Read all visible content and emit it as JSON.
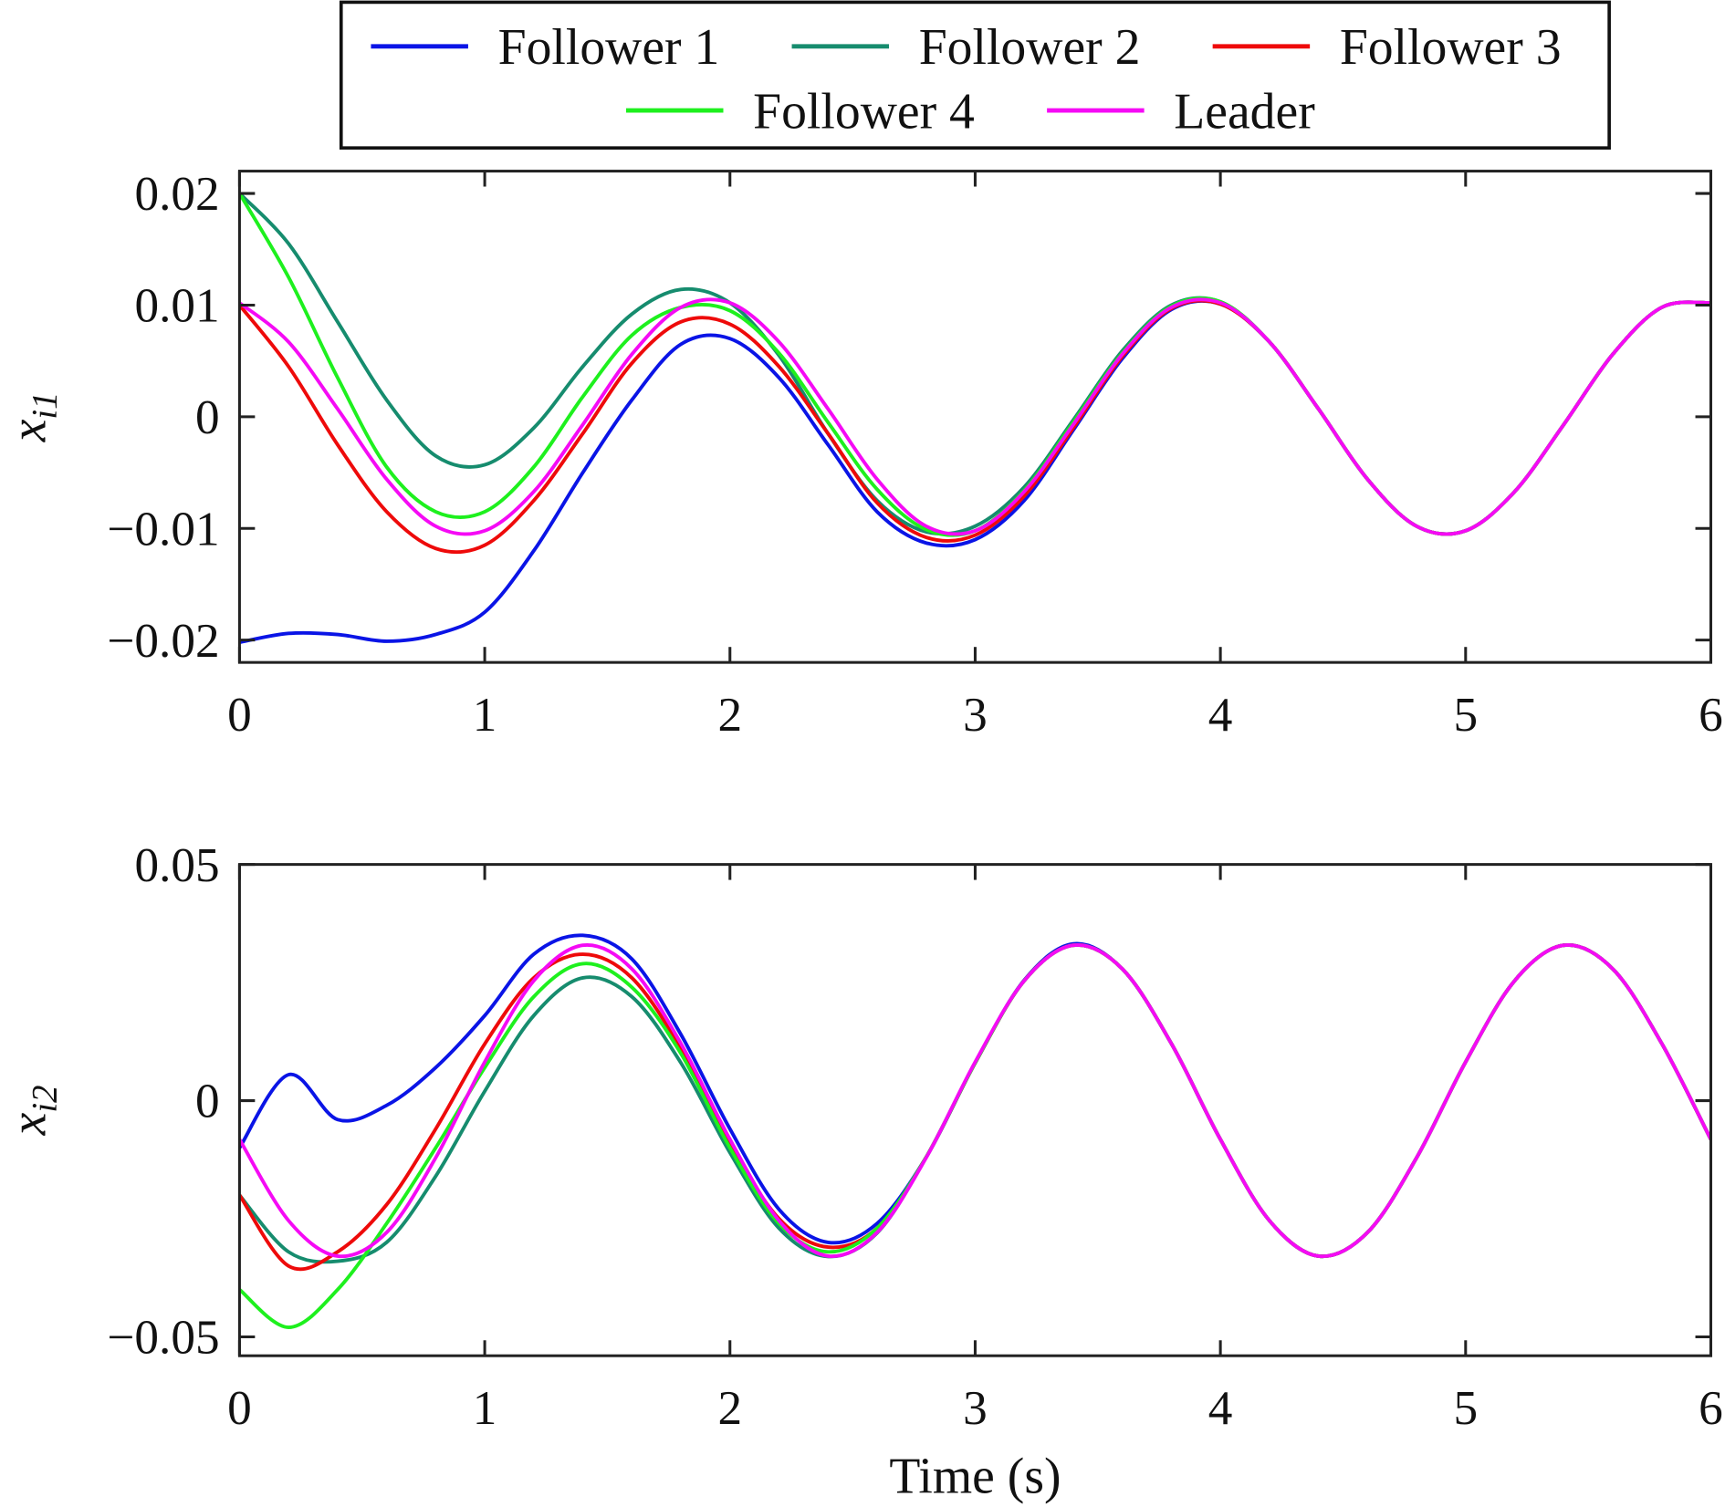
{
  "chart_data": [
    {
      "type": "line",
      "title": "",
      "xlabel": "",
      "ylabel": "x_i1",
      "ylabel_main": "x",
      "ylabel_sub": "i1",
      "xlim": [
        0,
        6
      ],
      "ylim": [
        -0.022,
        0.022
      ],
      "xticks": [
        0,
        1,
        2,
        3,
        4,
        5,
        6
      ],
      "xtick_labels": [
        "0",
        "1",
        "2",
        "3",
        "4",
        "5",
        "6"
      ],
      "yticks": [
        0.02,
        0.01,
        0,
        -0.01,
        -0.02
      ],
      "ytick_labels": [
        "0.02",
        "0.01",
        "0",
        "−0.01",
        "−0.02"
      ],
      "grid": false,
      "x": [
        0,
        0.2,
        0.4,
        0.6,
        0.8,
        1.0,
        1.2,
        1.4,
        1.6,
        1.8,
        2.0,
        2.2,
        2.4,
        2.6,
        2.8,
        3.0,
        3.2,
        3.4,
        3.6,
        3.8,
        4.0,
        4.2,
        4.4,
        4.6,
        4.8,
        5.0,
        5.2,
        5.4,
        5.6,
        5.8,
        6.0
      ],
      "series": [
        {
          "name": "Follower 1",
          "color": "#0a14e6",
          "values": [
            -0.0202,
            -0.0194,
            -0.0195,
            -0.0201,
            -0.0195,
            -0.0175,
            -0.012,
            -0.005,
            0.0015,
            0.0065,
            0.007,
            0.0035,
            -0.0025,
            -0.0085,
            -0.0113,
            -0.011,
            -0.0075,
            -0.0012,
            0.0052,
            0.0096,
            0.0101,
            0.0067,
            0.0007,
            -0.0056,
            -0.0098,
            -0.0102,
            -0.0067,
            -0.0007,
            0.0056,
            0.0098,
            0.0102
          ]
        },
        {
          "name": "Follower 2",
          "color": "#168c6e",
          "values": [
            0.02,
            0.0155,
            0.0085,
            0.0015,
            -0.0035,
            -0.0043,
            -0.001,
            0.0045,
            0.0092,
            0.0114,
            0.0102,
            0.0055,
            -0.0015,
            -0.0075,
            -0.0103,
            -0.0098,
            -0.0063,
            -0.0003,
            0.0059,
            0.01,
            0.0103,
            0.0067,
            0.0007,
            -0.0056,
            -0.0098,
            -0.0102,
            -0.0067,
            -0.0007,
            0.0056,
            0.0098,
            0.0102
          ]
        },
        {
          "name": "Follower 3",
          "color": "#ee0a0a",
          "values": [
            0.01,
            0.0045,
            -0.0025,
            -0.0085,
            -0.0118,
            -0.0115,
            -0.0075,
            -0.0015,
            0.0048,
            0.0085,
            0.0083,
            0.0045,
            -0.0015,
            -0.0077,
            -0.0108,
            -0.0106,
            -0.0071,
            -0.001,
            0.0054,
            0.0097,
            0.0101,
            0.0067,
            0.0007,
            -0.0056,
            -0.0098,
            -0.0102,
            -0.0067,
            -0.0007,
            0.0056,
            0.0098,
            0.0102
          ]
        },
        {
          "name": "Follower 4",
          "color": "#1ef01e",
          "values": [
            0.02,
            0.0125,
            0.0035,
            -0.0045,
            -0.0085,
            -0.0085,
            -0.0045,
            0.0018,
            0.0073,
            0.0098,
            0.0095,
            0.0057,
            -0.0005,
            -0.0065,
            -0.0101,
            -0.0102,
            -0.0066,
            -0.0005,
            0.0057,
            0.0099,
            0.0103,
            0.0067,
            0.0007,
            -0.0056,
            -0.0098,
            -0.0102,
            -0.0067,
            -0.0007,
            0.0056,
            0.0098,
            0.0102
          ]
        },
        {
          "name": "Leader",
          "color": "#f50af5",
          "values": [
            0.0102,
            0.0067,
            0.0007,
            -0.0056,
            -0.0098,
            -0.0102,
            -0.0067,
            -0.0007,
            0.0056,
            0.0098,
            0.0102,
            0.0067,
            0.0007,
            -0.0056,
            -0.0098,
            -0.0102,
            -0.0067,
            -0.0007,
            0.0056,
            0.0098,
            0.0102,
            0.0067,
            0.0007,
            -0.0056,
            -0.0098,
            -0.0102,
            -0.0067,
            -0.0007,
            0.0056,
            0.0098,
            0.0102
          ]
        }
      ]
    },
    {
      "type": "line",
      "title": "",
      "xlabel": "Time (s)",
      "ylabel": "x_i2",
      "ylabel_main": "x",
      "ylabel_sub": "i2",
      "xlim": [
        0,
        6
      ],
      "ylim": [
        -0.054,
        0.05
      ],
      "xticks": [
        0,
        1,
        2,
        3,
        4,
        5,
        6
      ],
      "xtick_labels": [
        "0",
        "1",
        "2",
        "3",
        "4",
        "5",
        "6"
      ],
      "yticks": [
        0.05,
        0,
        -0.05
      ],
      "ytick_labels": [
        "0.05",
        "0",
        "−0.05"
      ],
      "grid": false,
      "x": [
        0,
        0.2,
        0.4,
        0.6,
        0.8,
        1.0,
        1.2,
        1.4,
        1.6,
        1.8,
        2.0,
        2.2,
        2.4,
        2.6,
        2.8,
        3.0,
        3.2,
        3.4,
        3.6,
        3.8,
        4.0,
        4.2,
        4.4,
        4.6,
        4.8,
        5.0,
        5.2,
        5.4,
        5.6,
        5.8,
        6.0
      ],
      "series": [
        {
          "name": "Follower 1",
          "color": "#0a14e6",
          "values": [
            -0.01,
            0.0055,
            -0.004,
            -0.001,
            0.007,
            0.018,
            0.031,
            0.035,
            0.03,
            0.014,
            -0.006,
            -0.023,
            -0.03,
            -0.026,
            -0.012,
            0.008,
            0.0255,
            0.0332,
            0.0279,
            0.0121,
            -0.0082,
            -0.0254,
            -0.0329,
            -0.0279,
            -0.0121,
            0.0082,
            0.0254,
            0.0329,
            0.0279,
            0.0121,
            -0.0082
          ]
        },
        {
          "name": "Follower 2",
          "color": "#168c6e",
          "values": [
            -0.02,
            -0.032,
            -0.034,
            -0.03,
            -0.016,
            0.002,
            0.018,
            0.026,
            0.022,
            0.008,
            -0.011,
            -0.027,
            -0.033,
            -0.028,
            -0.012,
            0.008,
            0.0254,
            0.0329,
            0.0279,
            0.0121,
            -0.0082,
            -0.0254,
            -0.0329,
            -0.0279,
            -0.0121,
            0.0082,
            0.0254,
            0.0329,
            0.0279,
            0.0121,
            -0.0082
          ]
        },
        {
          "name": "Follower 3",
          "color": "#ee0a0a",
          "values": [
            -0.02,
            -0.035,
            -0.032,
            -0.022,
            -0.006,
            0.012,
            0.026,
            0.031,
            0.026,
            0.011,
            -0.009,
            -0.025,
            -0.031,
            -0.027,
            -0.012,
            0.008,
            0.0254,
            0.0329,
            0.0279,
            0.0121,
            -0.0082,
            -0.0254,
            -0.0329,
            -0.0279,
            -0.0121,
            0.0082,
            0.0254,
            0.0329,
            0.0279,
            0.0121,
            -0.0082
          ]
        },
        {
          "name": "Follower 4",
          "color": "#1ef01e",
          "values": [
            -0.04,
            -0.048,
            -0.04,
            -0.026,
            -0.01,
            0.007,
            0.022,
            0.029,
            0.024,
            0.01,
            -0.01,
            -0.026,
            -0.032,
            -0.027,
            -0.012,
            0.008,
            0.0254,
            0.0329,
            0.0279,
            0.0121,
            -0.0082,
            -0.0254,
            -0.0329,
            -0.0279,
            -0.0121,
            0.0082,
            0.0254,
            0.0329,
            0.0279,
            0.0121,
            -0.0082
          ]
        },
        {
          "name": "Leader",
          "color": "#f50af5",
          "values": [
            -0.0082,
            -0.0254,
            -0.0329,
            -0.0279,
            -0.0121,
            0.0082,
            0.0254,
            0.0329,
            0.0279,
            0.0121,
            -0.0082,
            -0.0254,
            -0.0329,
            -0.0279,
            -0.0121,
            0.0082,
            0.0254,
            0.0329,
            0.0279,
            0.0121,
            -0.0082,
            -0.0254,
            -0.0329,
            -0.0279,
            -0.0121,
            0.0082,
            0.0254,
            0.0329,
            0.0279,
            0.0121,
            -0.0082
          ]
        }
      ]
    }
  ],
  "legend": {
    "placement": "top-center",
    "entries": [
      "Follower 1",
      "Follower 2",
      "Follower 3",
      "Follower 4",
      "Leader"
    ]
  }
}
